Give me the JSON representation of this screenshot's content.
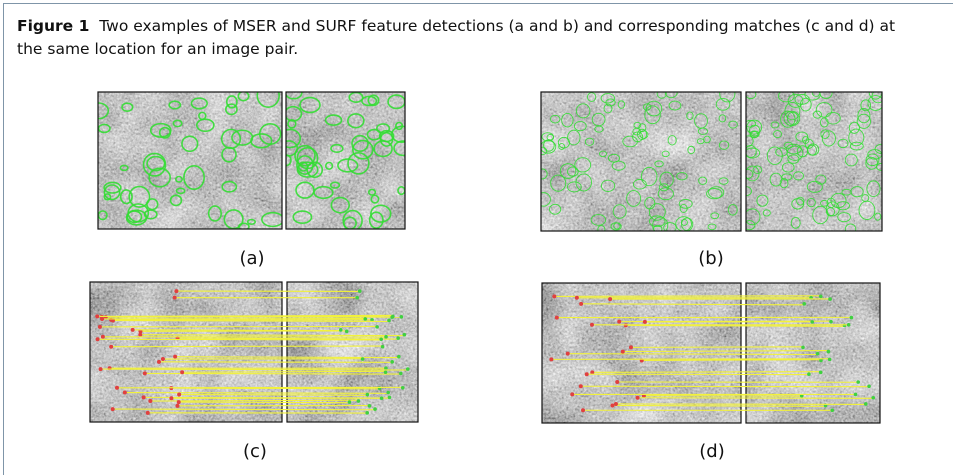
{
  "caption": {
    "label": "Figure 1",
    "text": "Two examples of MSER and SURF feature detections (a and b) and corresponding matches (c and d) at the same location for an image pair."
  },
  "panels": [
    {
      "label": "(a)"
    },
    {
      "label": "(b)"
    },
    {
      "label": "(c)"
    },
    {
      "label": "(d)"
    }
  ]
}
